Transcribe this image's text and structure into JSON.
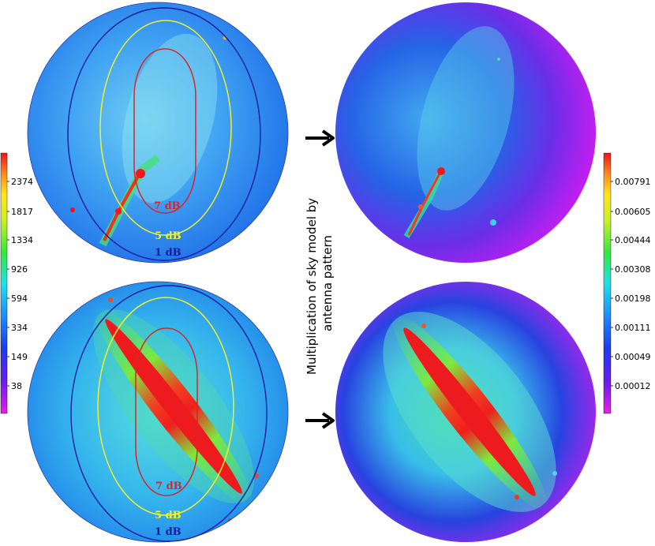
{
  "left_colorbar": {
    "ticks": [
      "2374",
      "1817",
      "1334",
      "926",
      "594",
      "334",
      "149",
      "38"
    ]
  },
  "right_colorbar": {
    "ticks": [
      "0.00791",
      "0.00605",
      "0.00444",
      "0.00308",
      "0.00198",
      "0.00111",
      "0.00049",
      "0.00012"
    ]
  },
  "contours": {
    "top": {
      "inner": "7 dB",
      "middle": "5 dB",
      "outer": "1 dB"
    },
    "bottom": {
      "inner": "7 dB",
      "middle": "5 dB",
      "outer": "1 dB"
    }
  },
  "middle_caption": {
    "line1": "Multiplication of sky model by",
    "line2": "antenna pattern"
  },
  "colors": {
    "contour_7db": "#d8262b",
    "contour_5db": "#f1ef2e",
    "contour_1db": "#1a1a9e",
    "sky_base": "#1f7bf0",
    "weighted_base": "#c01ef0"
  }
}
